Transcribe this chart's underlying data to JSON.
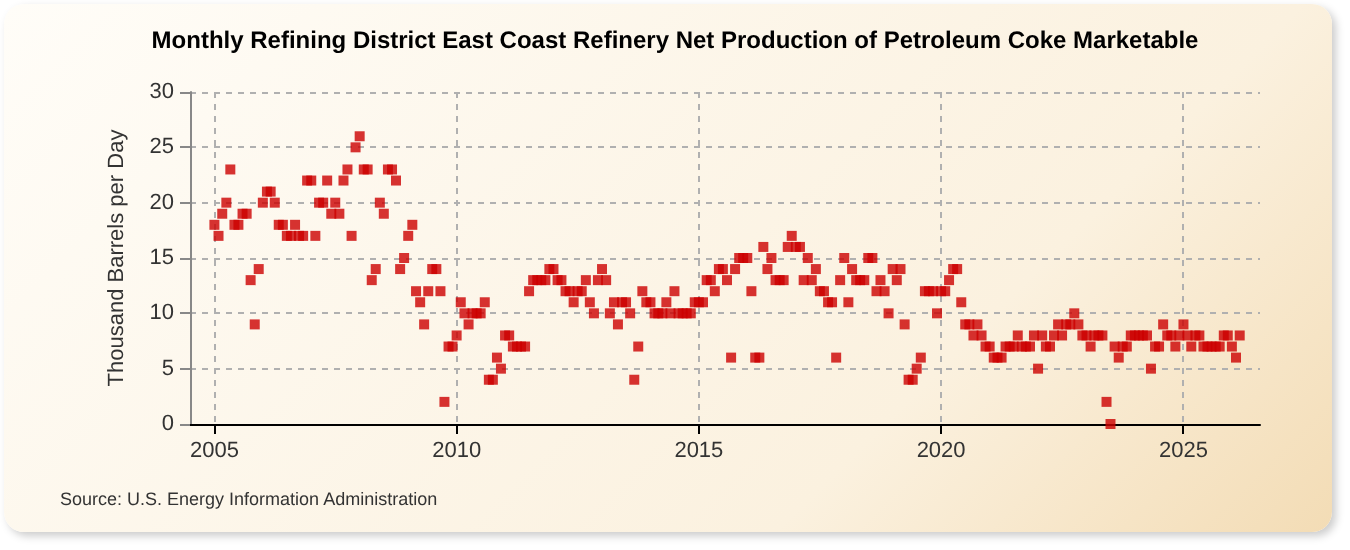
{
  "chart_data": {
    "type": "scatter",
    "title": "Monthly Refining District East Coast Refinery Net Production of Petroleum Coke Marketable",
    "ylabel": "Thousand Barrels per Day",
    "annotations": [
      "Source: U.S. Energy Information Administration"
    ],
    "xlim": [
      "2004-07",
      "2026-08"
    ],
    "xticks": [
      "2005",
      "2010",
      "2015",
      "2020",
      "2025"
    ],
    "ylim": [
      0,
      30
    ],
    "yticks": [
      0,
      5,
      10,
      15,
      20,
      25,
      30
    ],
    "grid": true,
    "marker": "square",
    "x": [
      "2005-01",
      "2005-02",
      "2005-03",
      "2005-04",
      "2005-05",
      "2005-06",
      "2005-07",
      "2005-08",
      "2005-09",
      "2005-10",
      "2005-11",
      "2005-12",
      "2006-01",
      "2006-02",
      "2006-03",
      "2006-04",
      "2006-05",
      "2006-06",
      "2006-07",
      "2006-08",
      "2006-09",
      "2006-10",
      "2006-11",
      "2006-12",
      "2007-01",
      "2007-02",
      "2007-03",
      "2007-04",
      "2007-05",
      "2007-06",
      "2007-07",
      "2007-08",
      "2007-09",
      "2007-10",
      "2007-11",
      "2007-12",
      "2008-01",
      "2008-02",
      "2008-03",
      "2008-04",
      "2008-05",
      "2008-06",
      "2008-07",
      "2008-08",
      "2008-09",
      "2008-10",
      "2008-11",
      "2008-12",
      "2009-01",
      "2009-02",
      "2009-03",
      "2009-04",
      "2009-05",
      "2009-06",
      "2009-07",
      "2009-08",
      "2009-09",
      "2009-10",
      "2009-11",
      "2009-12",
      "2010-01",
      "2010-02",
      "2010-03",
      "2010-04",
      "2010-05",
      "2010-06",
      "2010-07",
      "2010-08",
      "2010-09",
      "2010-10",
      "2010-11",
      "2010-12",
      "2011-01",
      "2011-02",
      "2011-03",
      "2011-04",
      "2011-05",
      "2011-06",
      "2011-07",
      "2011-08",
      "2011-09",
      "2011-10",
      "2011-11",
      "2011-12",
      "2012-01",
      "2012-02",
      "2012-03",
      "2012-04",
      "2012-05",
      "2012-06",
      "2012-07",
      "2012-08",
      "2012-09",
      "2012-10",
      "2012-11",
      "2012-12",
      "2013-01",
      "2013-02",
      "2013-03",
      "2013-04",
      "2013-05",
      "2013-06",
      "2013-07",
      "2013-08",
      "2013-09",
      "2013-10",
      "2013-11",
      "2013-12",
      "2014-01",
      "2014-02",
      "2014-03",
      "2014-04",
      "2014-05",
      "2014-06",
      "2014-07",
      "2014-08",
      "2014-09",
      "2014-10",
      "2014-11",
      "2014-12",
      "2015-01",
      "2015-02",
      "2015-03",
      "2015-04",
      "2015-05",
      "2015-06",
      "2015-07",
      "2015-08",
      "2015-09",
      "2015-10",
      "2015-11",
      "2015-12",
      "2016-01",
      "2016-02",
      "2016-03",
      "2016-04",
      "2016-05",
      "2016-06",
      "2016-07",
      "2016-08",
      "2016-09",
      "2016-10",
      "2016-11",
      "2016-12",
      "2017-01",
      "2017-02",
      "2017-03",
      "2017-04",
      "2017-05",
      "2017-06",
      "2017-07",
      "2017-08",
      "2017-09",
      "2017-10",
      "2017-11",
      "2017-12",
      "2018-01",
      "2018-02",
      "2018-03",
      "2018-04",
      "2018-05",
      "2018-06",
      "2018-07",
      "2018-08",
      "2018-09",
      "2018-10",
      "2018-11",
      "2018-12",
      "2019-01",
      "2019-02",
      "2019-03",
      "2019-04",
      "2019-05",
      "2019-06",
      "2019-07",
      "2019-08",
      "2019-09",
      "2019-10",
      "2019-11",
      "2019-12",
      "2020-01",
      "2020-02",
      "2020-03",
      "2020-04",
      "2020-05",
      "2020-06",
      "2020-07",
      "2020-08",
      "2020-09",
      "2020-10",
      "2020-11",
      "2020-12",
      "2021-01",
      "2021-02",
      "2021-03",
      "2021-04",
      "2021-05",
      "2021-06",
      "2021-07",
      "2021-08",
      "2021-09",
      "2021-10",
      "2021-11",
      "2021-12",
      "2022-01",
      "2022-02",
      "2022-03",
      "2022-04",
      "2022-05",
      "2022-06",
      "2022-07",
      "2022-08",
      "2022-09",
      "2022-10",
      "2022-11",
      "2022-12",
      "2023-01",
      "2023-02",
      "2023-03",
      "2023-04",
      "2023-05",
      "2023-06",
      "2023-07",
      "2023-08",
      "2023-09",
      "2023-10",
      "2023-11",
      "2023-12",
      "2024-01",
      "2024-02",
      "2024-03",
      "2024-04",
      "2024-05",
      "2024-06",
      "2024-07",
      "2024-08",
      "2024-09",
      "2024-10",
      "2024-11",
      "2024-12",
      "2025-01",
      "2025-02",
      "2025-03",
      "2025-04",
      "2025-05",
      "2025-06",
      "2025-07",
      "2025-08",
      "2025-09",
      "2025-10",
      "2025-11",
      "2025-12",
      "2026-01",
      "2026-02",
      "2026-03"
    ],
    "series": [
      {
        "color": "#cc0000",
        "values": [
          18,
          17,
          19,
          20,
          23,
          18,
          18,
          19,
          19,
          13,
          9,
          14,
          20,
          21,
          21,
          20,
          18,
          18,
          17,
          17,
          18,
          17,
          17,
          22,
          22,
          17,
          20,
          20,
          22,
          19,
          20,
          19,
          22,
          23,
          17,
          25,
          26,
          23,
          23,
          13,
          14,
          20,
          19,
          23,
          23,
          22,
          14,
          15,
          17,
          18,
          12,
          11,
          9,
          12,
          14,
          14,
          12,
          2,
          7,
          7,
          8,
          11,
          10,
          9,
          10,
          10,
          10,
          11,
          4,
          4,
          6,
          5,
          8,
          8,
          7,
          7,
          7,
          7,
          12,
          13,
          13,
          13,
          13,
          14,
          14,
          13,
          13,
          12,
          12,
          11,
          12,
          12,
          13,
          11,
          10,
          13,
          14,
          13,
          10,
          11,
          9,
          11,
          11,
          10,
          4,
          7,
          12,
          11,
          11,
          10,
          10,
          10,
          11,
          10,
          12,
          10,
          10,
          10,
          10,
          11,
          11,
          11,
          13,
          13,
          12,
          14,
          14,
          13,
          6,
          14,
          15,
          15,
          15,
          12,
          6,
          6,
          16,
          14,
          15,
          13,
          13,
          13,
          16,
          17,
          16,
          16,
          13,
          15,
          13,
          14,
          12,
          12,
          11,
          11,
          6,
          13,
          15,
          11,
          14,
          13,
          13,
          13,
          15,
          15,
          12,
          13,
          12,
          10,
          14,
          13,
          14,
          9,
          4,
          4,
          5,
          6,
          12,
          12,
          12,
          10,
          12,
          12,
          13,
          14,
          14,
          11,
          9,
          9,
          8,
          9,
          8,
          7,
          7,
          6,
          6,
          6,
          7,
          7,
          7,
          8,
          7,
          7,
          7,
          8,
          5,
          8,
          7,
          7,
          8,
          9,
          8,
          9,
          9,
          10,
          9,
          8,
          8,
          7,
          8,
          8,
          8,
          2,
          0,
          7,
          6,
          7,
          7,
          8,
          8,
          8,
          8,
          8,
          5,
          7,
          7,
          9,
          8,
          8,
          7,
          8,
          9,
          8,
          7,
          8,
          8,
          7,
          7,
          7,
          7,
          7,
          8,
          8,
          7,
          6,
          8
        ]
      }
    ]
  }
}
